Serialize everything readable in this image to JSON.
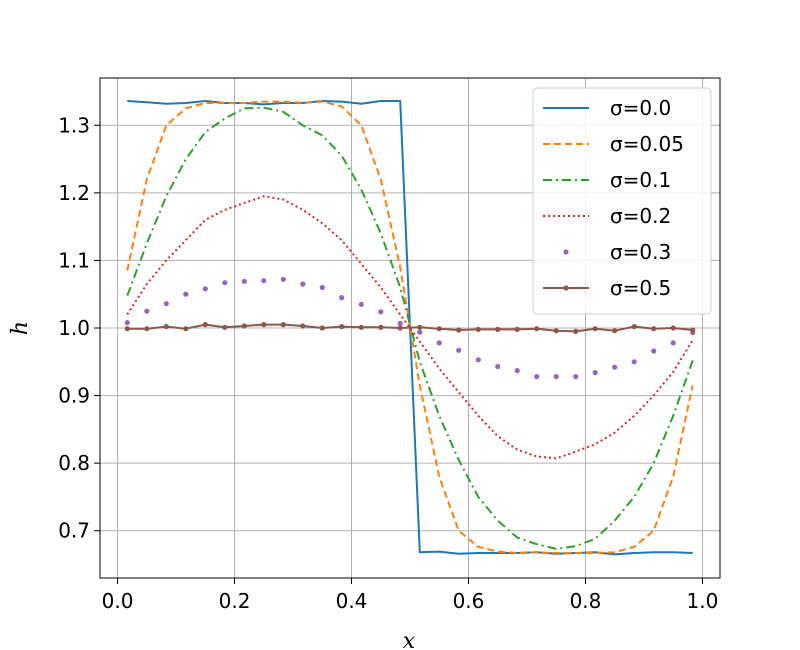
{
  "chart_data": {
    "type": "line",
    "title": "",
    "xlabel": "x",
    "ylabel": "h",
    "xlim": [
      -0.03,
      1.03
    ],
    "ylim": [
      0.63,
      1.37
    ],
    "xticks": [
      0.0,
      0.2,
      0.4,
      0.6,
      0.8,
      1.0
    ],
    "xtick_labels": [
      "0.0",
      "0.2",
      "0.4",
      "0.6",
      "0.8",
      "1.0"
    ],
    "yticks": [
      0.7,
      0.8,
      0.9,
      1.0,
      1.1,
      1.2,
      1.3
    ],
    "ytick_labels": [
      "0.7",
      "0.8",
      "0.9",
      "1.0",
      "1.1",
      "1.2",
      "1.3"
    ],
    "grid": true,
    "legend_position": "top-right",
    "x": [
      0.0167,
      0.05,
      0.0833,
      0.1167,
      0.15,
      0.1833,
      0.2167,
      0.25,
      0.2833,
      0.3167,
      0.35,
      0.3833,
      0.4167,
      0.45,
      0.4833,
      0.5167,
      0.55,
      0.5833,
      0.6167,
      0.65,
      0.6833,
      0.7167,
      0.75,
      0.7833,
      0.8167,
      0.85,
      0.8833,
      0.9167,
      0.95,
      0.9833
    ],
    "series": [
      {
        "name": "σ=0.0",
        "color": "#1f77b4",
        "style": "solid",
        "values": [
          1.336,
          1.334,
          1.332,
          1.333,
          1.336,
          1.333,
          1.333,
          1.331,
          1.333,
          1.333,
          1.336,
          1.335,
          1.332,
          1.336,
          1.336,
          0.668,
          0.669,
          0.666,
          0.667,
          0.667,
          0.667,
          0.668,
          0.666,
          0.667,
          0.668,
          0.665,
          0.667,
          0.668,
          0.668,
          0.667
        ]
      },
      {
        "name": "σ=0.05",
        "color": "#ff7f0e",
        "style": "dashed",
        "values": [
          1.085,
          1.22,
          1.3,
          1.325,
          1.333,
          1.333,
          1.333,
          1.335,
          1.335,
          1.333,
          1.335,
          1.328,
          1.3,
          1.22,
          1.09,
          0.915,
          0.78,
          0.7,
          0.676,
          0.669,
          0.667,
          0.668,
          0.667,
          0.667,
          0.667,
          0.668,
          0.676,
          0.7,
          0.78,
          0.915
        ]
      },
      {
        "name": "σ=0.1",
        "color": "#2ca02c",
        "style": "dashdot",
        "values": [
          1.048,
          1.125,
          1.195,
          1.25,
          1.29,
          1.31,
          1.325,
          1.326,
          1.32,
          1.3,
          1.285,
          1.255,
          1.205,
          1.14,
          1.06,
          0.95,
          0.87,
          0.805,
          0.75,
          0.715,
          0.69,
          0.68,
          0.673,
          0.677,
          0.688,
          0.715,
          0.75,
          0.8,
          0.87,
          0.952
        ]
      },
      {
        "name": "σ=0.2",
        "color": "#d62728",
        "style": "dotted",
        "values": [
          1.02,
          1.065,
          1.1,
          1.13,
          1.16,
          1.175,
          1.185,
          1.195,
          1.19,
          1.175,
          1.155,
          1.13,
          1.095,
          1.06,
          1.02,
          0.98,
          0.94,
          0.905,
          0.87,
          0.84,
          0.82,
          0.81,
          0.807,
          0.817,
          0.828,
          0.845,
          0.87,
          0.9,
          0.935,
          0.982
        ]
      },
      {
        "name": "σ=0.3",
        "color": "#9467bd",
        "style": "dots",
        "values": [
          1.008,
          1.025,
          1.036,
          1.05,
          1.058,
          1.067,
          1.069,
          1.07,
          1.072,
          1.065,
          1.06,
          1.045,
          1.035,
          1.024,
          1.007,
          0.994,
          0.978,
          0.967,
          0.953,
          0.943,
          0.937,
          0.928,
          0.928,
          0.928,
          0.934,
          0.942,
          0.95,
          0.966,
          0.978,
          0.993
        ]
      },
      {
        "name": "σ=0.5",
        "color": "#8c564b",
        "style": "solid-marker",
        "values": [
          0.999,
          0.999,
          1.002,
          0.999,
          1.005,
          1.001,
          1.003,
          1.005,
          1.005,
          1.003,
          1.0,
          1.002,
          1.001,
          1.001,
          1.0,
          1.001,
          0.999,
          0.997,
          0.998,
          0.998,
          0.998,
          0.999,
          0.996,
          0.995,
          0.999,
          0.996,
          1.002,
          0.999,
          1.0,
          0.997
        ]
      }
    ]
  }
}
